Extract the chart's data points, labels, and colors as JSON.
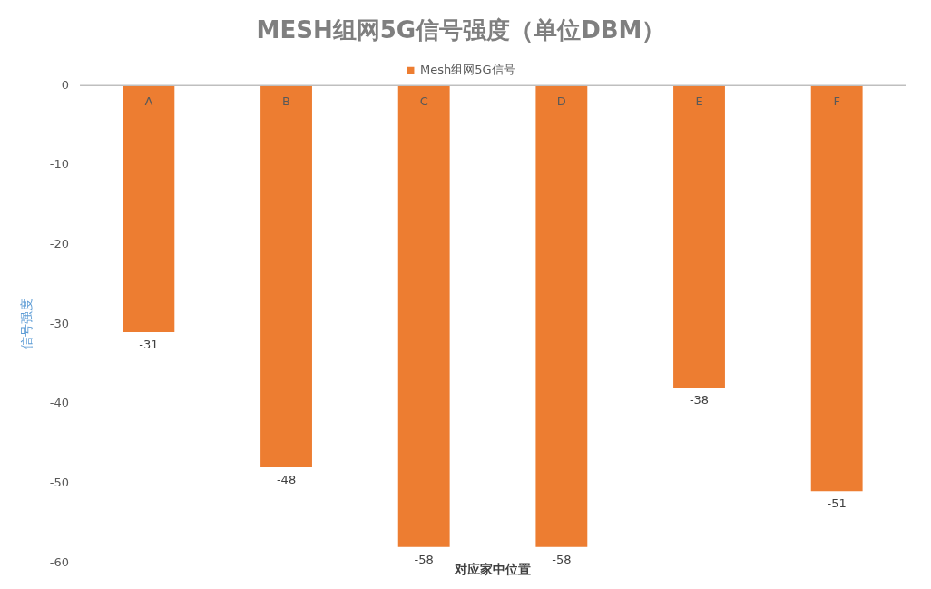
{
  "chart_data": {
    "type": "bar",
    "title": "MESH组网5G信号强度（单位DBM）",
    "xlabel": "对应家中位置",
    "ylabel": "信号强度",
    "categories": [
      "A",
      "B",
      "C",
      "D",
      "E",
      "F"
    ],
    "series": [
      {
        "name": "Mesh组网5G信号",
        "color": "#ed7d31",
        "values": [
          -31,
          -48,
          -58,
          -58,
          -38,
          -51
        ]
      }
    ],
    "ylim": [
      -60,
      0
    ],
    "yticks": [
      -60,
      -50,
      -40,
      -30,
      -20,
      -10,
      0
    ],
    "grid": false,
    "legend": "top",
    "data_labels": true
  }
}
